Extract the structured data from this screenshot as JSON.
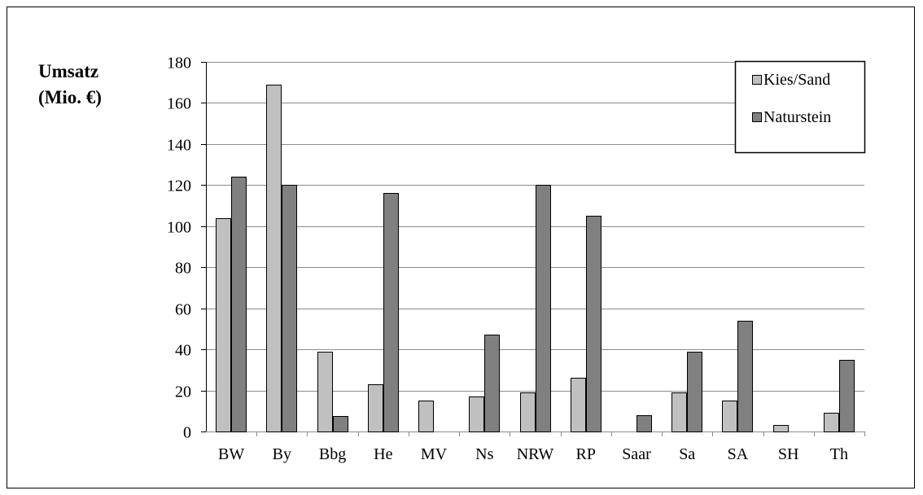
{
  "chart_data": {
    "type": "bar",
    "ylabel_lines": [
      "Umsatz",
      "(Mio. €)"
    ],
    "categories": [
      "BW",
      "By",
      "Bbg",
      "He",
      "MV",
      "Ns",
      "NRW",
      "RP",
      "Saar",
      "Sa",
      "SA",
      "SH",
      "Th"
    ],
    "series": [
      {
        "name": "Kies/Sand",
        "color": "#c0c0c0",
        "values": [
          104,
          169,
          39,
          23,
          15,
          17,
          19,
          26,
          0,
          19,
          15,
          3,
          9
        ]
      },
      {
        "name": "Naturstein",
        "color": "#808080",
        "values": [
          124,
          120,
          7.5,
          116,
          0,
          47,
          120,
          105,
          8,
          39,
          54,
          0,
          35
        ]
      }
    ],
    "ylim": [
      0,
      180
    ],
    "yticks": [
      0,
      20,
      40,
      60,
      80,
      100,
      120,
      140,
      160,
      180
    ],
    "grid": true,
    "legend_position": "top-right"
  }
}
